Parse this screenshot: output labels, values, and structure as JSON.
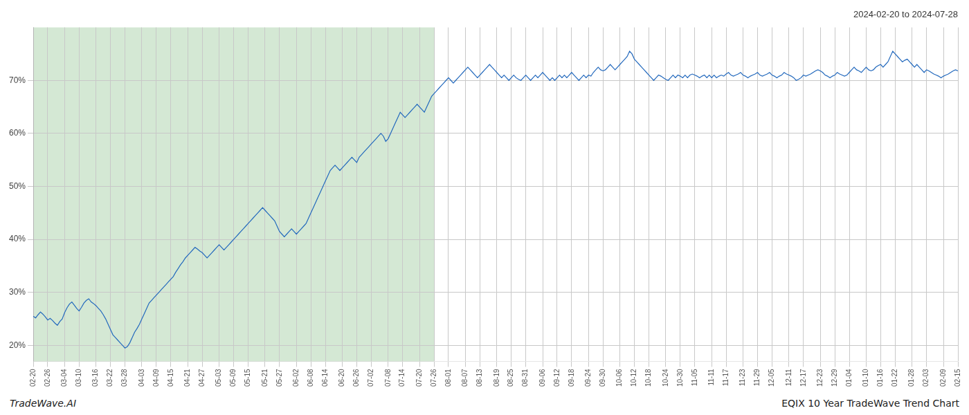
{
  "chart_data": {
    "type": "line",
    "title": "2024-02-20 to 2024-07-28",
    "annotations": [
      "TradeWave.AI",
      "EQIX 10 Year TradeWave Trend Chart"
    ],
    "color": "#2369bd",
    "grid": true,
    "grid_color": "#c8c8c8",
    "shaded_span": {
      "from": "02-20",
      "to": "07-26",
      "color": "#d4e8d4"
    },
    "ylim": [
      17,
      80
    ],
    "yticks": [
      {
        "value": 20,
        "label": "20%"
      },
      {
        "value": 30,
        "label": "30%"
      },
      {
        "value": 40,
        "label": "40%"
      },
      {
        "value": 50,
        "label": "50%"
      },
      {
        "value": 60,
        "label": "60%"
      },
      {
        "value": 70,
        "label": "70%"
      }
    ],
    "categories": [
      "02-20",
      null,
      null,
      null,
      null,
      null,
      "02-26",
      null,
      null,
      null,
      null,
      null,
      null,
      "03-04",
      null,
      null,
      null,
      null,
      null,
      "03-10",
      null,
      null,
      null,
      null,
      null,
      null,
      "03-16",
      null,
      null,
      null,
      null,
      null,
      "03-22",
      null,
      null,
      null,
      null,
      null,
      "03-28",
      null,
      null,
      null,
      null,
      null,
      null,
      "04-03",
      null,
      null,
      null,
      null,
      null,
      "04-09",
      null,
      null,
      null,
      null,
      null,
      "04-15",
      null,
      null,
      null,
      null,
      null,
      null,
      "04-21",
      null,
      null,
      null,
      null,
      null,
      "04-27",
      null,
      null,
      null,
      null,
      null,
      null,
      "05-03",
      null,
      null,
      null,
      null,
      null,
      "05-09",
      null,
      null,
      null,
      null,
      null,
      "05-15",
      null,
      null,
      null,
      null,
      null,
      null,
      "05-21",
      null,
      null,
      null,
      null,
      null,
      "05-27",
      null,
      null,
      null,
      null,
      null,
      null,
      "06-02",
      null,
      null,
      null,
      null,
      null,
      "06-08",
      null,
      null,
      null,
      null,
      null,
      "06-14",
      null,
      null,
      null,
      null,
      null,
      null,
      "06-20",
      null,
      null,
      null,
      null,
      null,
      "06-26",
      null,
      null,
      null,
      null,
      null,
      "07-02",
      null,
      null,
      null,
      null,
      null,
      null,
      "07-08",
      null,
      null,
      null,
      null,
      null,
      "07-14",
      null,
      null,
      null,
      null,
      null,
      null,
      "07-20",
      null,
      null,
      null,
      null,
      null,
      "07-26",
      null,
      null,
      null,
      null,
      null,
      "08-01",
      null,
      null,
      null,
      null,
      null,
      null,
      "08-07",
      null,
      null,
      null,
      null,
      null,
      "08-13",
      null,
      null,
      null,
      null,
      null,
      null,
      "08-19",
      null,
      null,
      null,
      null,
      null,
      "08-25",
      null,
      null,
      null,
      null,
      null,
      "08-31",
      null,
      null,
      null,
      null,
      null,
      null,
      "09-06",
      null,
      null,
      null,
      null,
      null,
      "09-12",
      null,
      null,
      null,
      null,
      null,
      "09-18",
      null,
      null,
      null,
      null,
      null,
      null,
      "09-24",
      null,
      null,
      null,
      null,
      null,
      "09-30",
      null,
      null,
      null,
      null,
      null,
      null,
      "10-06",
      null,
      null,
      null,
      null,
      null,
      "10-12",
      null,
      null,
      null,
      null,
      null,
      "10-18",
      null,
      null,
      null,
      null,
      null,
      null,
      "10-24",
      null,
      null,
      null,
      null,
      null,
      "10-30",
      null,
      null,
      null,
      null,
      null,
      "11-05",
      null,
      null,
      null,
      null,
      null,
      null,
      "11-11",
      null,
      null,
      null,
      null,
      null,
      "11-17",
      null,
      null,
      null,
      null,
      null,
      null,
      "11-23",
      null,
      null,
      null,
      null,
      null,
      "11-29",
      null,
      null,
      null,
      null,
      null,
      "12-05",
      null,
      null,
      null,
      null,
      null,
      null,
      "12-11",
      null,
      null,
      null,
      null,
      null,
      "12-17",
      null,
      null,
      null,
      null,
      null,
      null,
      "12-23",
      null,
      null,
      null,
      null,
      null,
      "12-29",
      null,
      null,
      null,
      null,
      null,
      "01-04",
      null,
      null,
      null,
      null,
      null,
      null,
      "01-10",
      null,
      null,
      null,
      null,
      null,
      "01-16",
      null,
      null,
      null,
      null,
      null,
      "01-22",
      null,
      null,
      null,
      null,
      null,
      null,
      "01-28",
      null,
      null,
      null,
      null,
      null,
      "02-03",
      null,
      null,
      null,
      null,
      null,
      null,
      "02-09",
      null,
      null,
      null,
      null,
      null,
      "02-15"
    ],
    "values": [
      25.5,
      25.2,
      25.8,
      26.3,
      25.9,
      25.4,
      24.8,
      25.1,
      24.7,
      24.2,
      23.8,
      24.5,
      25.0,
      26.2,
      27.1,
      27.8,
      28.2,
      27.6,
      27.0,
      26.5,
      27.2,
      28.0,
      28.5,
      28.8,
      28.2,
      27.9,
      27.5,
      27.0,
      26.5,
      25.8,
      25.0,
      24.0,
      23.0,
      22.0,
      21.5,
      21.0,
      20.5,
      20.0,
      19.5,
      19.8,
      20.5,
      21.5,
      22.5,
      23.2,
      24.0,
      25.0,
      26.0,
      27.0,
      28.0,
      28.5,
      29.0,
      29.5,
      30.0,
      30.5,
      31.0,
      31.5,
      32.0,
      32.5,
      33.0,
      33.8,
      34.5,
      35.2,
      35.8,
      36.5,
      37.0,
      37.5,
      38.0,
      38.5,
      38.2,
      37.8,
      37.5,
      37.0,
      36.5,
      37.0,
      37.5,
      38.0,
      38.5,
      39.0,
      38.5,
      38.0,
      38.5,
      39.0,
      39.5,
      40.0,
      40.5,
      41.0,
      41.5,
      42.0,
      42.5,
      43.0,
      43.5,
      44.0,
      44.5,
      45.0,
      45.5,
      46.0,
      45.5,
      45.0,
      44.5,
      44.0,
      43.5,
      42.5,
      41.5,
      41.0,
      40.5,
      41.0,
      41.5,
      42.0,
      41.5,
      41.0,
      41.5,
      42.0,
      42.5,
      43.0,
      44.0,
      45.0,
      46.0,
      47.0,
      48.0,
      49.0,
      50.0,
      51.0,
      52.0,
      53.0,
      53.5,
      54.0,
      53.5,
      53.0,
      53.5,
      54.0,
      54.5,
      55.0,
      55.5,
      55.0,
      54.5,
      55.5,
      56.0,
      56.5,
      57.0,
      57.5,
      58.0,
      58.5,
      59.0,
      59.5,
      60.0,
      59.5,
      58.5,
      59.0,
      60.0,
      61.0,
      62.0,
      63.0,
      64.0,
      63.5,
      63.0,
      63.5,
      64.0,
      64.5,
      65.0,
      65.5,
      65.0,
      64.5,
      64.0,
      65.0,
      66.0,
      67.0,
      67.5,
      68.0,
      68.5,
      69.0,
      69.5,
      70.0,
      70.5,
      70.0,
      69.5,
      70.0,
      70.5,
      71.0,
      71.5,
      72.0,
      72.5,
      72.0,
      71.5,
      71.0,
      70.5,
      71.0,
      71.5,
      72.0,
      72.5,
      73.0,
      72.5,
      72.0,
      71.5,
      71.0,
      70.5,
      71.0,
      70.5,
      70.0,
      70.5,
      71.0,
      70.5,
      70.2,
      70.0,
      70.5,
      71.0,
      70.5,
      70.0,
      70.5,
      71.0,
      70.5,
      71.0,
      71.5,
      71.0,
      70.5,
      70.0,
      70.5,
      70.0,
      70.5,
      71.0,
      70.5,
      71.0,
      70.5,
      71.0,
      71.5,
      71.0,
      70.5,
      70.0,
      70.5,
      71.0,
      70.5,
      71.0,
      70.8,
      71.5,
      72.0,
      72.5,
      72.0,
      71.8,
      72.0,
      72.5,
      73.0,
      72.5,
      72.0,
      72.5,
      73.0,
      73.5,
      74.0,
      74.5,
      75.5,
      75.0,
      74.0,
      73.5,
      73.0,
      72.5,
      72.0,
      71.5,
      71.0,
      70.5,
      70.0,
      70.5,
      71.0,
      70.8,
      70.5,
      70.2,
      70.0,
      70.5,
      71.0,
      70.5,
      71.0,
      70.8,
      70.5,
      71.0,
      70.5,
      71.0,
      71.2,
      71.0,
      70.8,
      70.5,
      70.8,
      71.0,
      70.5,
      71.0,
      70.5,
      71.0,
      70.5,
      70.8,
      71.0,
      70.8,
      71.2,
      71.5,
      71.0,
      70.8,
      71.0,
      71.2,
      71.5,
      71.0,
      70.8,
      70.5,
      70.8,
      71.0,
      71.2,
      71.5,
      71.0,
      70.8,
      71.0,
      71.2,
      71.5,
      71.0,
      70.8,
      70.5,
      70.8,
      71.0,
      71.5,
      71.2,
      71.0,
      70.8,
      70.5,
      70.0,
      70.2,
      70.5,
      71.0,
      70.8,
      71.0,
      71.2,
      71.5,
      71.8,
      72.0,
      71.8,
      71.5,
      71.0,
      70.8,
      70.5,
      70.8,
      71.0,
      71.5,
      71.2,
      71.0,
      70.8,
      71.0,
      71.5,
      72.0,
      72.5,
      72.0,
      71.8,
      71.5,
      72.0,
      72.5,
      72.0,
      71.8,
      72.0,
      72.5,
      72.8,
      73.0,
      72.5,
      73.0,
      73.5,
      74.5,
      75.5,
      75.0,
      74.5,
      74.0,
      73.5,
      73.8,
      74.0,
      73.5,
      73.0,
      72.5,
      73.0,
      72.5,
      72.0,
      71.5,
      72.0,
      71.8,
      71.5,
      71.2,
      71.0,
      70.8,
      70.5,
      70.8,
      71.0,
      71.2,
      71.5,
      71.8,
      72.0,
      71.8
    ]
  }
}
